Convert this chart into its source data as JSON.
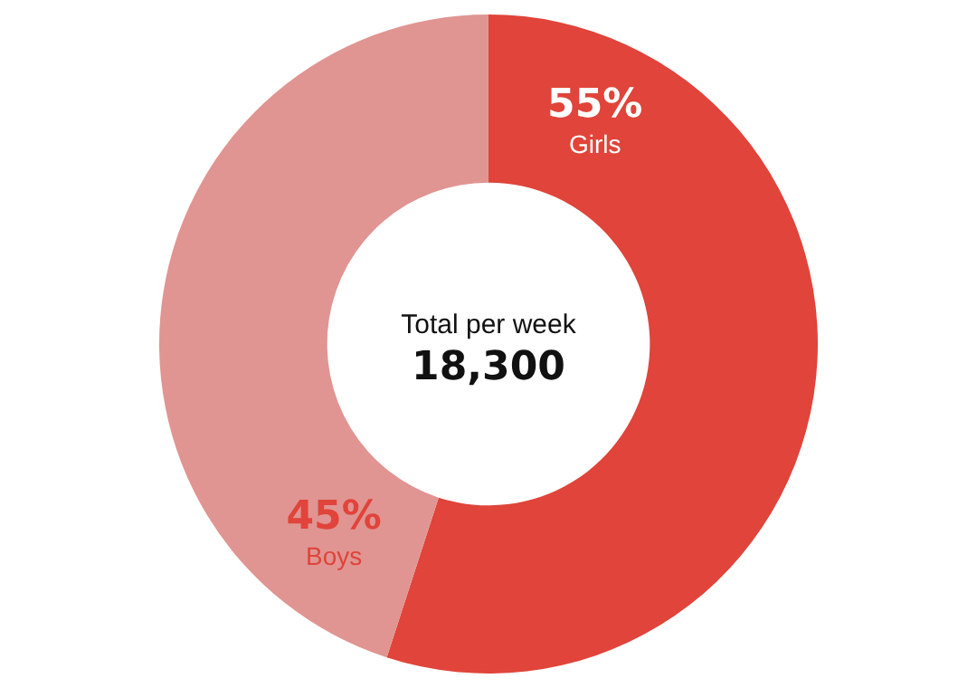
{
  "chart_data": {
    "type": "donut",
    "categories": [
      "Girls",
      "Boys"
    ],
    "values": [
      55,
      45
    ],
    "colors": [
      "#e0443a",
      "#e09592"
    ],
    "value_labels": [
      "55%",
      "45%"
    ],
    "annotations": [
      "Total per week",
      "18,300"
    ],
    "legend": false
  }
}
